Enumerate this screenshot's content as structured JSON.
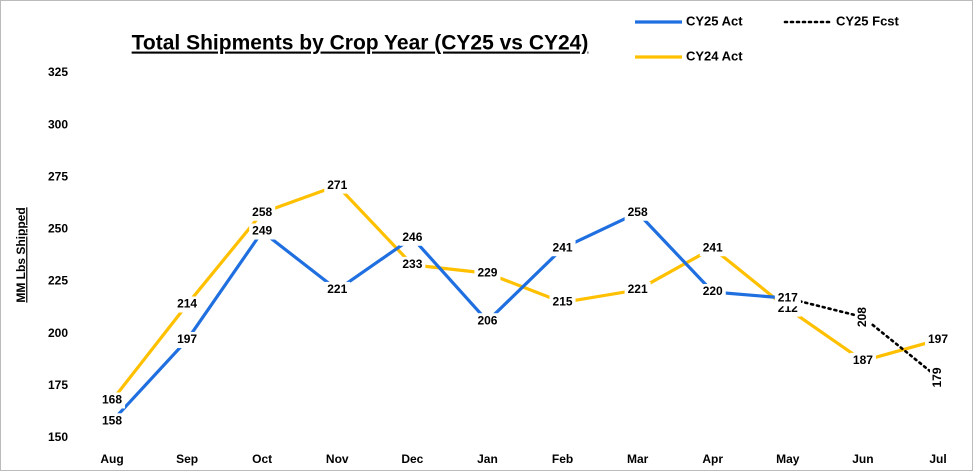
{
  "chart_data": {
    "type": "line",
    "title": "Total Shipments by Crop Year (CY25 vs CY24)",
    "y_label": "MM Lbs Shipped",
    "categories": [
      "Aug",
      "Sep",
      "Oct",
      "Nov",
      "Dec",
      "Jan",
      "Feb",
      "Mar",
      "Apr",
      "May",
      "Jun",
      "Jul"
    ],
    "series": [
      {
        "name": "CY24 Act",
        "color": "#ffc000",
        "values": [
          168,
          214,
          258,
          271,
          233,
          229,
          215,
          221,
          241,
          212,
          187,
          197
        ]
      },
      {
        "name": "CY25 Act",
        "color": "#1f6fe0",
        "values": [
          158,
          197,
          249,
          221,
          246,
          206,
          241,
          258,
          220,
          217,
          null,
          null
        ]
      },
      {
        "name": "CY25 Fcst",
        "color": "#000000",
        "dashed": true,
        "values": [
          null,
          null,
          null,
          null,
          null,
          null,
          null,
          null,
          null,
          217,
          208,
          179
        ]
      }
    ],
    "ylim": [
      150,
      325
    ],
    "yticks": [
      150,
      175,
      200,
      225,
      250,
      275,
      300,
      325
    ],
    "grid": false
  }
}
